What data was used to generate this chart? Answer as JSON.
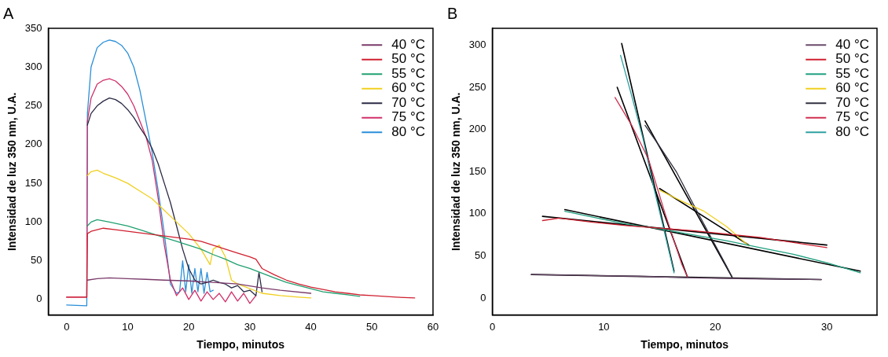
{
  "chart_data": [
    {
      "type": "line",
      "title": "A",
      "xlabel": "Tiempo, minutos",
      "ylabel": "Intensidad de luz 350 nm, U.A.",
      "xlim": [
        -3,
        60
      ],
      "ylim": [
        -20,
        350
      ],
      "xticks": [
        0,
        10,
        20,
        30,
        40,
        50,
        60
      ],
      "yticks": [
        0,
        50,
        100,
        150,
        200,
        250,
        300,
        350
      ],
      "grid": false,
      "legend": "top right",
      "marker": "none",
      "series": [
        {
          "name": "40 °C",
          "color": "#7a3a6a",
          "x": [
            3.4,
            5,
            7,
            10,
            13,
            16,
            20,
            24,
            28,
            32,
            35,
            40
          ],
          "values": [
            25,
            27,
            28,
            27,
            26,
            25,
            24,
            22,
            20,
            15,
            12,
            8
          ]
        },
        {
          "name": "50 °C",
          "color": "#d02030",
          "x": [
            0,
            3.3,
            3.4,
            4,
            6,
            8,
            10,
            12,
            14,
            16,
            18,
            20,
            22,
            24,
            26,
            28,
            30,
            31,
            32,
            34,
            36,
            38,
            40,
            42,
            44,
            46,
            48,
            50,
            52,
            54,
            57
          ],
          "values": [
            3,
            3,
            85,
            88,
            92,
            90,
            88,
            86,
            84,
            82,
            80,
            78,
            75,
            70,
            65,
            60,
            55,
            52,
            40,
            32,
            25,
            20,
            16,
            13,
            10,
            8,
            6,
            5,
            4,
            3,
            2
          ]
        },
        {
          "name": "55 °C",
          "color": "#20a070",
          "x": [
            3.4,
            4,
            5,
            7,
            10,
            12,
            14,
            16,
            18,
            20,
            22,
            24,
            26,
            28,
            30,
            32,
            34,
            36,
            38,
            40,
            42,
            44,
            46,
            48
          ],
          "values": [
            95,
            100,
            103,
            100,
            95,
            90,
            85,
            80,
            75,
            70,
            65,
            58,
            52,
            45,
            40,
            34,
            28,
            22,
            18,
            14,
            10,
            8,
            6,
            4
          ]
        },
        {
          "name": "60 °C",
          "color": "#f0d020",
          "x": [
            3.4,
            4,
            5,
            6,
            8,
            10,
            12,
            14,
            16,
            18,
            20,
            22,
            23.5,
            24,
            25,
            26,
            26.5,
            27,
            28,
            32,
            35,
            38,
            40
          ],
          "values": [
            160,
            165,
            167,
            163,
            157,
            150,
            140,
            130,
            115,
            100,
            85,
            65,
            45,
            65,
            70,
            55,
            40,
            25,
            20,
            8,
            5,
            3,
            2
          ]
        },
        {
          "name": "70 °C",
          "color": "#2a2a45",
          "x": [
            3.4,
            4,
            5,
            6,
            7,
            8,
            9,
            10,
            11,
            12,
            13,
            14,
            15,
            16,
            17,
            18,
            19,
            20,
            21,
            22,
            23,
            24,
            25,
            26,
            27,
            28,
            29,
            30,
            31,
            31.5,
            32
          ],
          "values": [
            225,
            240,
            250,
            256,
            260,
            258,
            253,
            245,
            235,
            222,
            210,
            195,
            175,
            150,
            125,
            95,
            65,
            40,
            25,
            20,
            22,
            25,
            22,
            20,
            15,
            18,
            10,
            12,
            5,
            35,
            10
          ]
        },
        {
          "name": "75 °C",
          "color": "#d0306a",
          "x": [
            0,
            3.3,
            3.4,
            4,
            5,
            6,
            7,
            8,
            9,
            10,
            11,
            12,
            13,
            14,
            15,
            16,
            17,
            18,
            19,
            20,
            21,
            22,
            23,
            24,
            25,
            26,
            27,
            28,
            29,
            30,
            31
          ],
          "values": [
            3,
            3,
            230,
            260,
            278,
            283,
            285,
            282,
            275,
            265,
            250,
            230,
            210,
            180,
            130,
            70,
            25,
            5,
            15,
            0,
            12,
            -2,
            10,
            0,
            8,
            -3,
            10,
            -2,
            8,
            -5,
            5
          ]
        },
        {
          "name": "80 °C",
          "color": "#2a8fd8",
          "x": [
            0,
            3.3,
            3.4,
            4,
            5,
            6,
            7,
            8,
            9,
            10,
            11,
            12,
            13,
            14,
            15,
            16,
            17,
            18,
            18.5,
            19,
            19.5,
            20,
            20.5,
            21,
            21.5,
            22,
            22.5,
            23,
            23.5,
            24
          ],
          "values": [
            -7,
            -8,
            240,
            300,
            325,
            332,
            335,
            333,
            328,
            318,
            300,
            270,
            230,
            190,
            140,
            85,
            20,
            8,
            10,
            50,
            10,
            45,
            8,
            40,
            10,
            40,
            8,
            35,
            10,
            12
          ]
        }
      ]
    },
    {
      "type": "line",
      "title": "B",
      "xlabel": "Tiempo, minutos",
      "ylabel": "Intensidad de luz 350 nm, U.A.",
      "xlim": [
        0,
        34.5
      ],
      "ylim": [
        -20,
        320
      ],
      "xticks": [
        0,
        10,
        20,
        30
      ],
      "yticks": [
        0,
        50,
        100,
        150,
        200,
        250,
        300
      ],
      "grid": false,
      "legend": "top right",
      "marker": "none",
      "series": [
        {
          "name": "40 °C",
          "color": "#6a4a6a",
          "x": [
            3.5,
            8,
            13,
            18,
            23,
            29.5
          ],
          "values": [
            28,
            27,
            26,
            24,
            23,
            22
          ]
        },
        {
          "name": "50 °C",
          "color": "#d02030",
          "x": [
            4.5,
            6,
            9,
            12,
            15,
            18,
            21,
            24,
            27,
            30
          ],
          "values": [
            92,
            95,
            90,
            86,
            83,
            80,
            76,
            72,
            66,
            60
          ]
        },
        {
          "name": "55 °C",
          "color": "#20a080",
          "x": [
            6.5,
            9,
            12,
            15,
            18,
            21,
            24,
            27,
            30,
            33
          ],
          "values": [
            103,
            96,
            88,
            82,
            75,
            68,
            60,
            52,
            42,
            30
          ]
        },
        {
          "name": "60 °C",
          "color": "#f0d020",
          "x": [
            15,
            17,
            19,
            21,
            23
          ],
          "values": [
            128,
            115,
            103,
            85,
            62
          ]
        },
        {
          "name": "70 °C",
          "color": "#303040",
          "x": [
            13.7,
            15,
            16.5,
            18,
            19.5,
            21,
            21.5
          ],
          "values": [
            205,
            180,
            150,
            112,
            75,
            38,
            25
          ]
        },
        {
          "name": "75 °C",
          "color": "#d03050",
          "x": [
            11,
            12.5,
            14,
            15.5,
            17,
            17.5
          ],
          "values": [
            238,
            205,
            165,
            100,
            40,
            25
          ]
        },
        {
          "name": "80 °C",
          "color": "#30a0a0",
          "x": [
            11.5,
            12.5,
            13.5,
            14.5,
            15.5,
            16.3
          ],
          "values": [
            288,
            240,
            190,
            130,
            75,
            30
          ]
        },
        {
          "color": "#000000",
          "x": [
            3.5,
            29.5
          ],
          "values": [
            28,
            22
          ]
        },
        {
          "color": "#000000",
          "x": [
            4.5,
            30
          ],
          "values": [
            97,
            63
          ]
        },
        {
          "color": "#000000",
          "x": [
            6.5,
            33
          ],
          "values": [
            105,
            32
          ]
        },
        {
          "color": "#000000",
          "x": [
            15,
            23
          ],
          "values": [
            130,
            63
          ]
        },
        {
          "color": "#000000",
          "x": [
            13.7,
            21.5
          ],
          "values": [
            210,
            25
          ]
        },
        {
          "color": "#000000",
          "x": [
            11.2,
            17.5
          ],
          "values": [
            250,
            25
          ]
        },
        {
          "color": "#000000",
          "x": [
            11.6,
            16.3
          ],
          "values": [
            302,
            32
          ]
        }
      ]
    }
  ]
}
